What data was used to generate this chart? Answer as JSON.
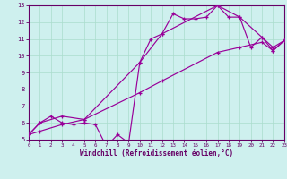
{
  "xlabel": "Windchill (Refroidissement éolien,°C)",
  "bg_color": "#cef0ee",
  "line_color": "#990099",
  "grid_color": "#aaddcc",
  "axis_color": "#660066",
  "xlim": [
    0,
    23
  ],
  "ylim": [
    5,
    13
  ],
  "xtick_labels": [
    "0",
    "1",
    "2",
    "3",
    "4",
    "5",
    "6",
    "7",
    "8",
    "9",
    "10",
    "11",
    "12",
    "13",
    "14",
    "15",
    "16",
    "17",
    "18",
    "19",
    "20",
    "21",
    "22",
    "23"
  ],
  "xtick_vals": [
    0,
    1,
    2,
    3,
    4,
    5,
    6,
    7,
    8,
    9,
    10,
    11,
    12,
    13,
    14,
    15,
    16,
    17,
    18,
    19,
    20,
    21,
    22,
    23
  ],
  "ytick_vals": [
    5,
    6,
    7,
    8,
    9,
    10,
    11,
    12,
    13
  ],
  "line1_x": [
    0,
    1,
    2,
    3,
    4,
    5,
    6,
    7,
    8,
    9,
    10,
    11,
    12,
    13,
    14,
    15,
    16,
    17,
    18,
    19,
    20,
    21,
    22,
    23
  ],
  "line1_y": [
    5.3,
    6.0,
    6.4,
    6.0,
    5.9,
    6.0,
    5.9,
    4.6,
    5.3,
    4.8,
    9.6,
    11.0,
    11.3,
    12.5,
    12.2,
    12.2,
    12.3,
    13.0,
    12.3,
    12.3,
    10.5,
    11.1,
    10.3,
    10.9
  ],
  "line2_x": [
    0,
    1,
    3,
    5,
    10,
    12,
    17,
    19,
    21,
    22,
    23
  ],
  "line2_y": [
    5.3,
    6.0,
    6.4,
    6.2,
    9.6,
    11.3,
    13.0,
    12.3,
    11.1,
    10.5,
    10.9
  ],
  "line3_x": [
    0,
    1,
    3,
    5,
    10,
    12,
    17,
    19,
    21,
    22,
    23
  ],
  "line3_y": [
    5.3,
    5.5,
    5.9,
    6.2,
    7.8,
    8.5,
    10.2,
    10.5,
    10.8,
    10.3,
    10.9
  ]
}
